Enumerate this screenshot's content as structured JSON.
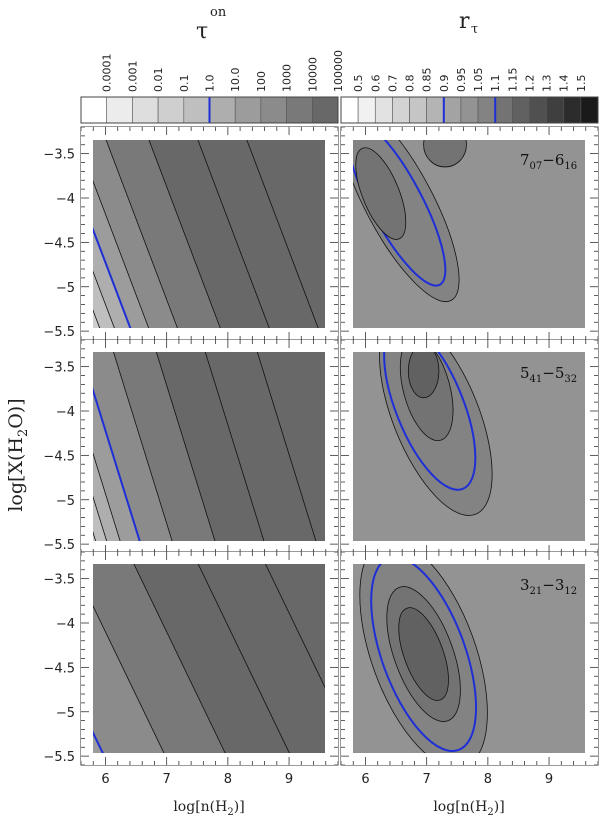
{
  "chart_data": {
    "type": "heatmap",
    "panel_grid": "3 rows x 2 columns, shared axes",
    "column_titles": {
      "left": {
        "base": "τ",
        "superscript": "on"
      },
      "right": {
        "base": "r",
        "subscript": "τ"
      }
    },
    "colorbars": {
      "left": {
        "labels": [
          "0.0001",
          "0.001",
          "0.01",
          "0.1",
          "1.0",
          "10.0",
          "100",
          "1000",
          "10000",
          "100000"
        ],
        "highlight_label": "1.0",
        "highlight_color": "#1f2fd6"
      },
      "right": {
        "labels": [
          "0.5",
          "0.6",
          "0.7",
          "0.8",
          "0.85",
          "0.9",
          "0.95",
          "1.05",
          "1.1",
          "1.15",
          "1.2",
          "1.3",
          "1.4",
          "1.5"
        ],
        "highlight_labels": [
          "0.9",
          "1.1"
        ],
        "highlight_color": "#1f2fd6"
      }
    },
    "x_axis": {
      "label_base": "log[n(H",
      "label_sub": "2",
      "label_end": ")]",
      "range": [
        5.6,
        9.8
      ],
      "ticks": [
        6,
        7,
        8,
        9
      ],
      "tick_labels": [
        "6",
        "7",
        "8",
        "9"
      ]
    },
    "y_axis": {
      "label_base": "log[X(H",
      "label_sub": "2",
      "label_end": "O)]",
      "range": [
        -5.6,
        -3.2
      ],
      "ticks": [
        -3.5,
        -4,
        -4.5,
        -5,
        -5.5
      ],
      "tick_labels": [
        "−3.5",
        "−4",
        "−4.5",
        "−5",
        "−5.5"
      ]
    },
    "rows": [
      {
        "transition": {
          "upper": "7",
          "upper_sub": "07",
          "lower": "6",
          "lower_sub": "16"
        }
      },
      {
        "transition": {
          "upper": "5",
          "upper_sub": "41",
          "lower": "5",
          "lower_sub": "32"
        }
      },
      {
        "transition": {
          "upper": "3",
          "upper_sub": "21",
          "lower": "3",
          "lower_sub": "12"
        }
      }
    ],
    "grid": false
  }
}
